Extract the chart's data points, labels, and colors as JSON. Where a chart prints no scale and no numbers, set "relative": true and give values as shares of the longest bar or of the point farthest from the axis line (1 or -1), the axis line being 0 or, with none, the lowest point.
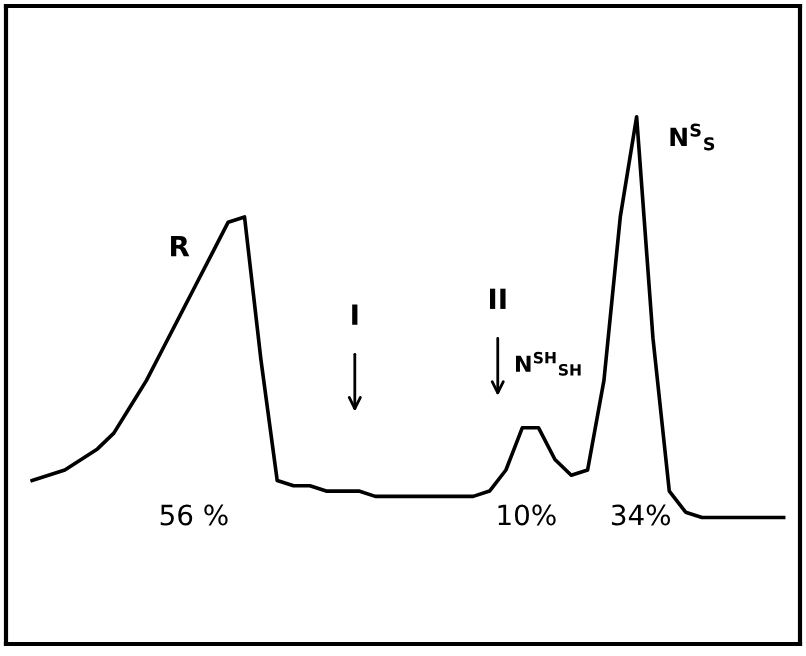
{
  "chart_data": {
    "type": "line",
    "relative": true,
    "categories": [
      null,
      null,
      null,
      null,
      null,
      null,
      null,
      null,
      null,
      null,
      null,
      null,
      null,
      null,
      null,
      null,
      null,
      null,
      null,
      null,
      null,
      null,
      null,
      null,
      null,
      null,
      null,
      null,
      null,
      null,
      null,
      null,
      null,
      null,
      null,
      null,
      null,
      null,
      null,
      null,
      null,
      null,
      null,
      null,
      null,
      null,
      null
    ],
    "series": [
      {
        "color": "#000000",
        "values": [
          0.31,
          0.32,
          0.33,
          0.35,
          0.37,
          0.4,
          0.45,
          0.5,
          0.56,
          0.62,
          0.68,
          0.74,
          0.8,
          0.81,
          0.54,
          0.31,
          0.3,
          0.3,
          0.29,
          0.29,
          0.29,
          0.28,
          0.28,
          0.28,
          0.28,
          0.28,
          0.28,
          0.28,
          0.29,
          0.33,
          0.41,
          0.41,
          0.35,
          0.32,
          0.33,
          0.5,
          0.81,
          1,
          0.58,
          0.29,
          0.25,
          0.24,
          0.24,
          0.24,
          0.24,
          0.24,
          0.24
        ]
      }
    ],
    "annotations": [
      "R",
      "I",
      "II",
      "N$^{SH}$$_{SH}$",
      "N$^{S}$$_{S}$",
      "56 %",
      "10%",
      "34%"
    ]
  }
}
